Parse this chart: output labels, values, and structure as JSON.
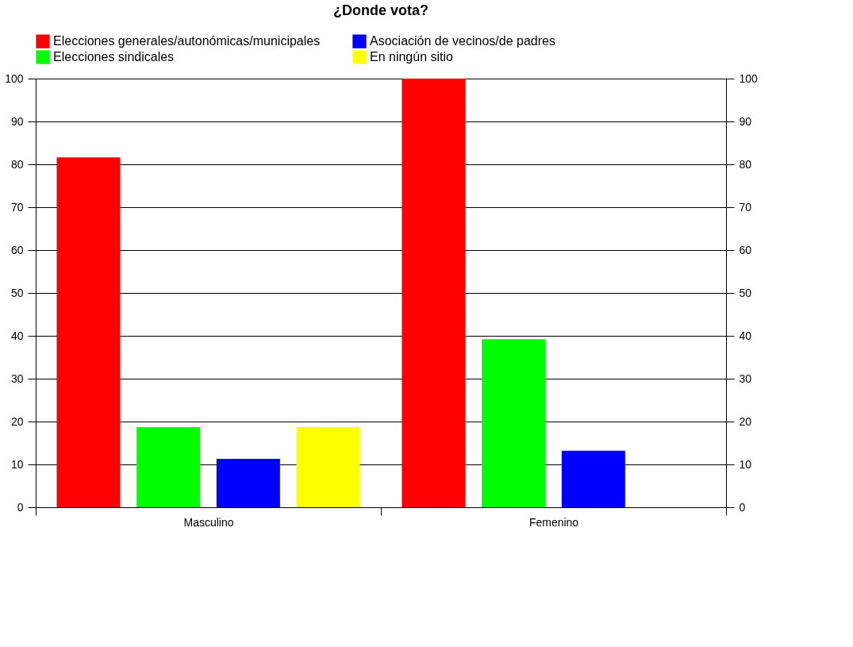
{
  "chart_data": {
    "type": "bar",
    "title": "¿Donde vota?",
    "categories": [
      "Masculino",
      "Femenino"
    ],
    "series": [
      {
        "name": "Elecciones generales/autonómicas/municipales",
        "color": "#ff0000",
        "values": [
          81.6,
          100
        ]
      },
      {
        "name": "Elecciones sindicales",
        "color": "#00ff00",
        "values": [
          18.7,
          39.2
        ]
      },
      {
        "name": "Asociación de vecinos/de padres",
        "color": "#0000ff",
        "values": [
          11.3,
          13.2
        ]
      },
      {
        "name": "En ningún sitio",
        "color": "#ffff00",
        "values": [
          18.7,
          0
        ]
      }
    ],
    "ylim": [
      0,
      100
    ],
    "yticks": [
      0,
      10,
      20,
      30,
      40,
      50,
      60,
      70,
      80,
      90,
      100
    ],
    "y2lim": [
      0,
      100
    ],
    "y2ticks": [
      0,
      10,
      20,
      30,
      40,
      50,
      60,
      70,
      80,
      90,
      100
    ],
    "grid": "y",
    "legend": "top"
  }
}
